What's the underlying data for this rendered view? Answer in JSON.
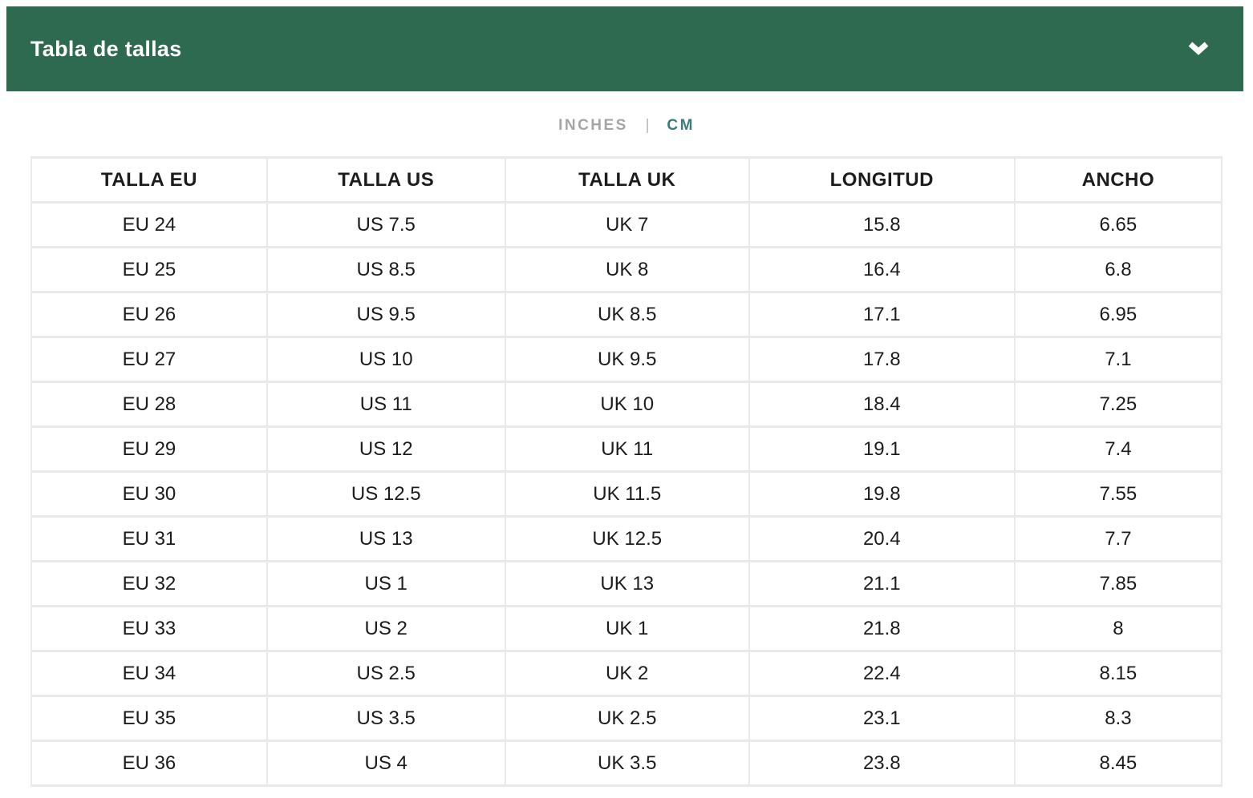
{
  "panel": {
    "title": "Tabla de tallas",
    "header_color": "#2e6a4f"
  },
  "unit_toggle": {
    "options": [
      {
        "label": "INCHES",
        "active": false
      },
      {
        "label": "CM",
        "active": true
      }
    ],
    "separator": "|",
    "active_color": "#3d7a7c",
    "inactive_color": "#a5a5a5"
  },
  "table": {
    "columns": [
      "TALLA EU",
      "TALLA US",
      "TALLA UK",
      "LONGITUD",
      "ANCHO"
    ],
    "rows": [
      [
        "EU 24",
        "US 7.5",
        "UK 7",
        "15.8",
        "6.65"
      ],
      [
        "EU 25",
        "US 8.5",
        "UK 8",
        "16.4",
        "6.8"
      ],
      [
        "EU 26",
        "US 9.5",
        "UK 8.5",
        "17.1",
        "6.95"
      ],
      [
        "EU 27",
        "US 10",
        "UK 9.5",
        "17.8",
        "7.1"
      ],
      [
        "EU 28",
        "US 11",
        "UK 10",
        "18.4",
        "7.25"
      ],
      [
        "EU 29",
        "US 12",
        "UK 11",
        "19.1",
        "7.4"
      ],
      [
        "EU 30",
        "US 12.5",
        "UK 11.5",
        "19.8",
        "7.55"
      ],
      [
        "EU 31",
        "US 13",
        "UK 12.5",
        "20.4",
        "7.7"
      ],
      [
        "EU 32",
        "US 1",
        "UK 13",
        "21.1",
        "7.85"
      ],
      [
        "EU 33",
        "US 2",
        "UK 1",
        "21.8",
        "8"
      ],
      [
        "EU 34",
        "US 2.5",
        "UK 2",
        "22.4",
        "8.15"
      ],
      [
        "EU 35",
        "US 3.5",
        "UK 2.5",
        "23.1",
        "8.3"
      ],
      [
        "EU 36",
        "US 4",
        "UK 3.5",
        "23.8",
        "8.45"
      ]
    ]
  }
}
